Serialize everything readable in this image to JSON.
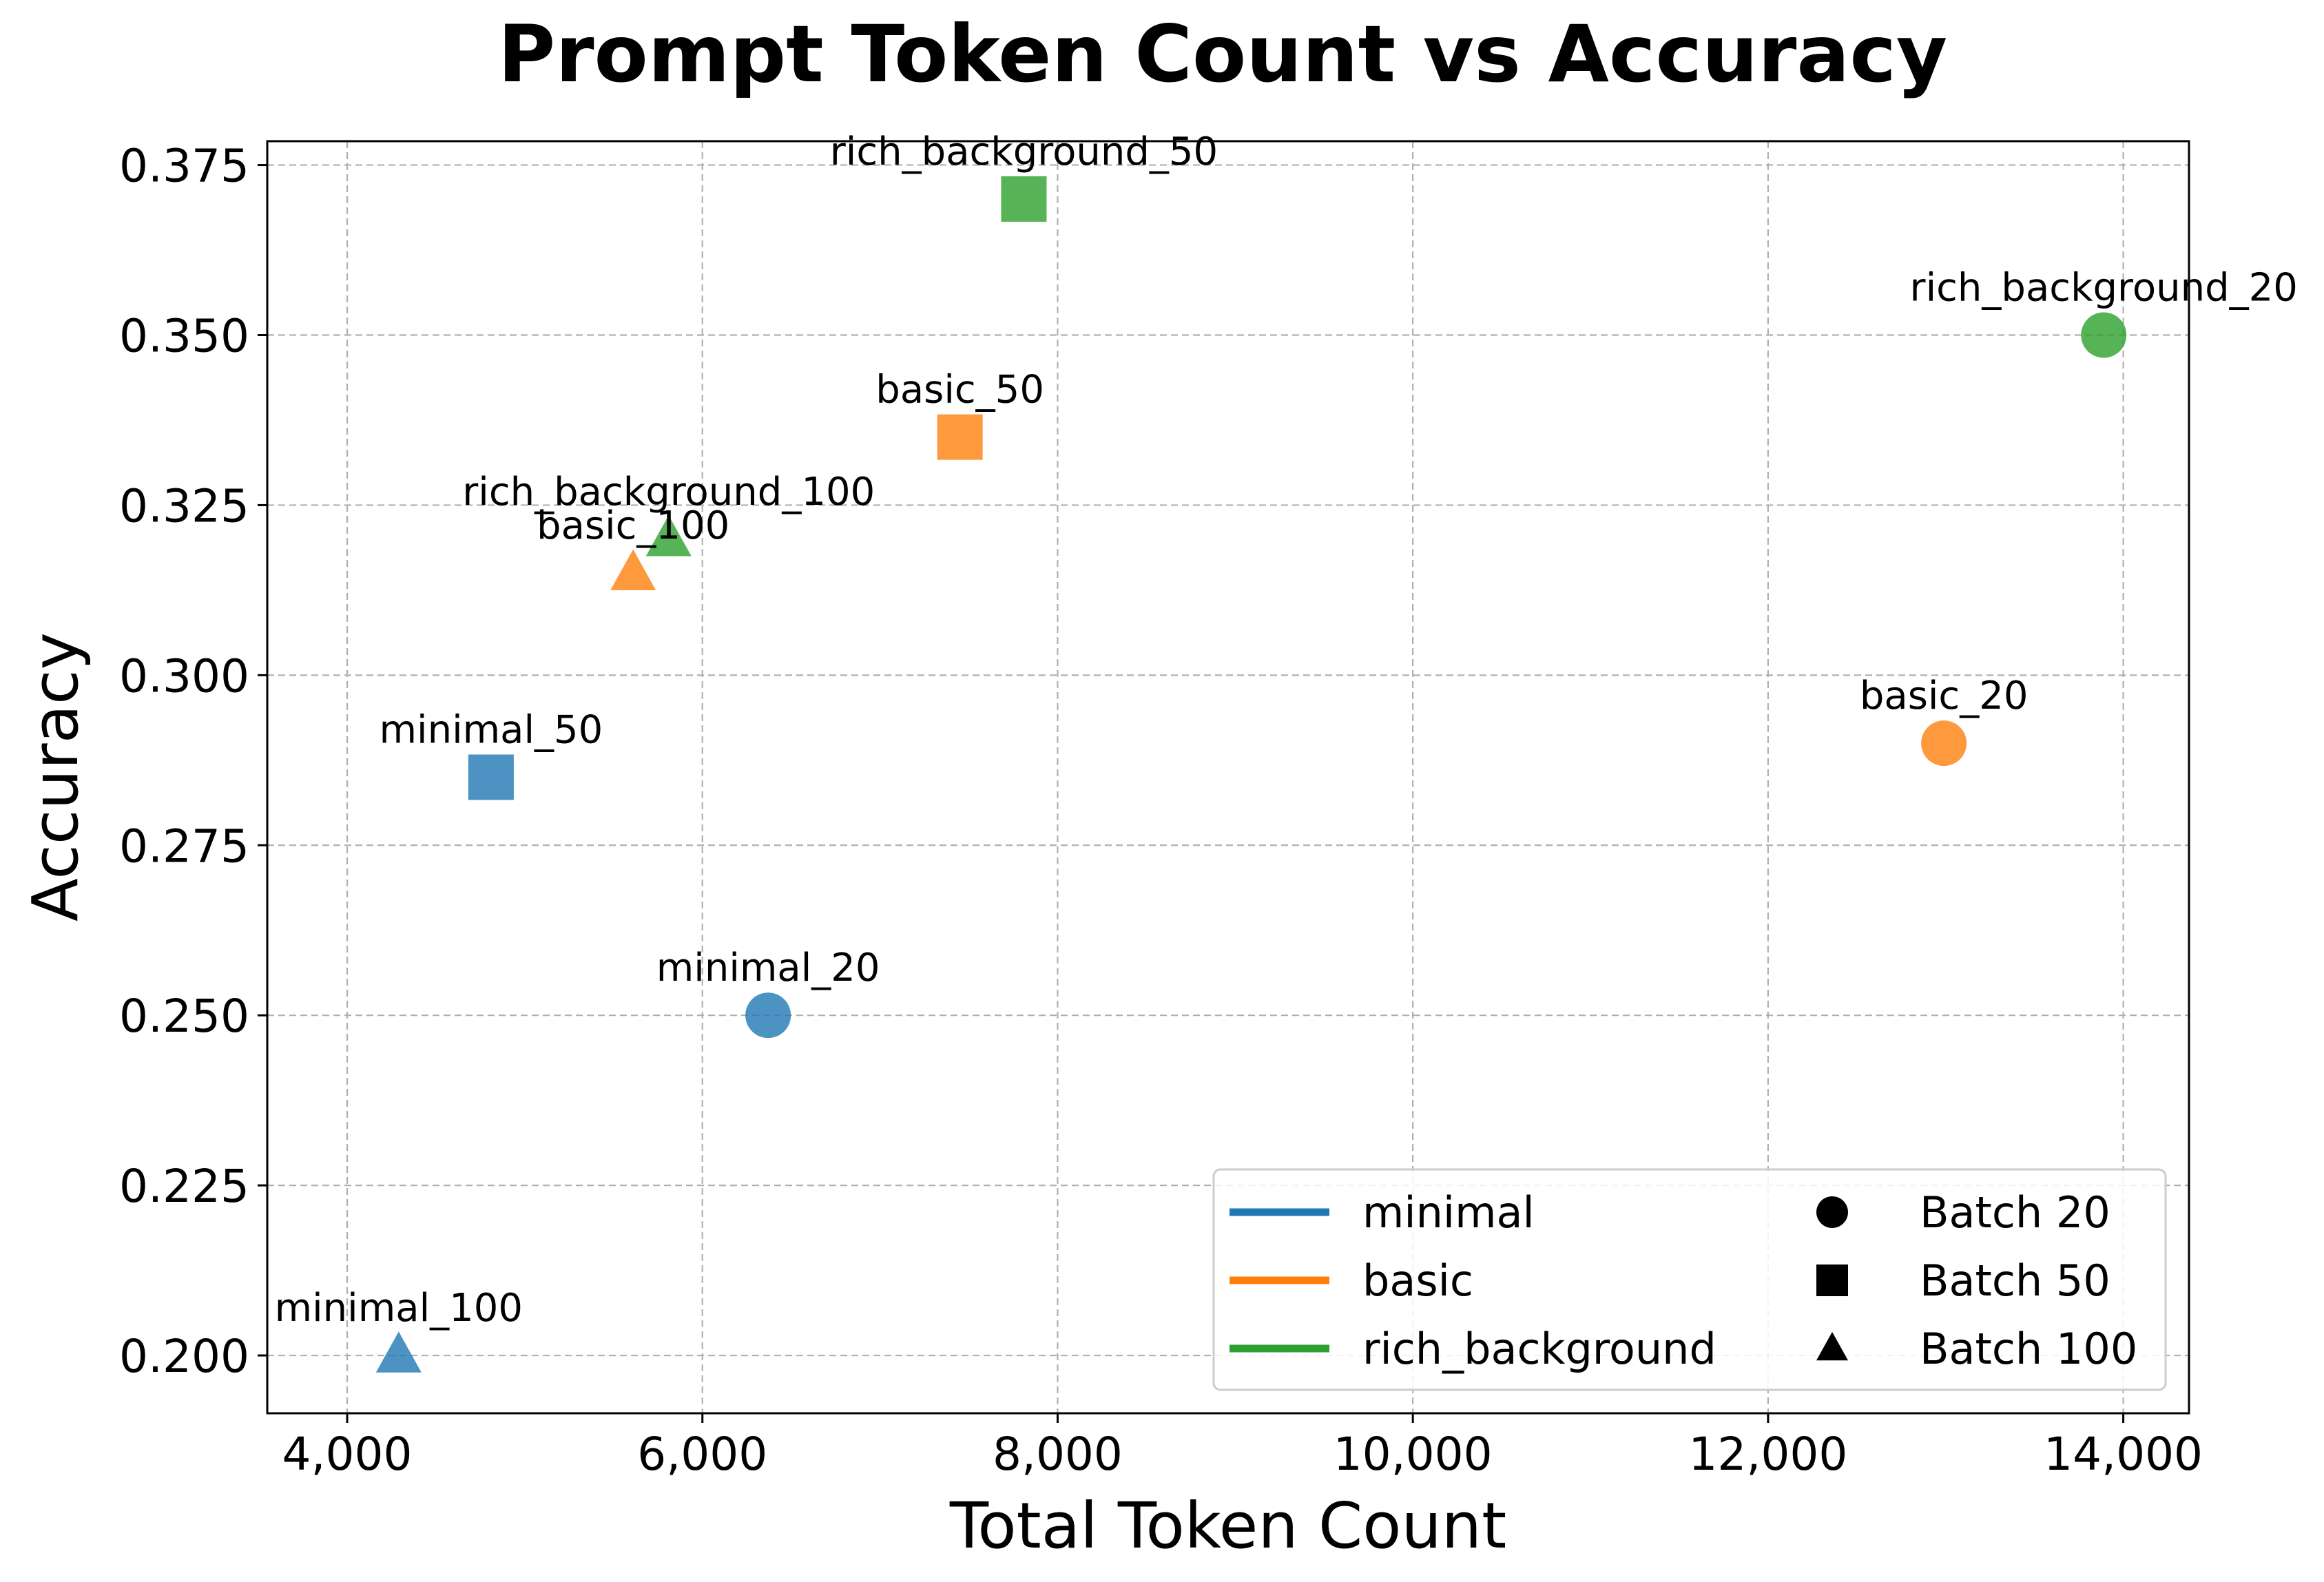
{
  "chart_data": {
    "type": "scatter",
    "title": "Prompt Token Count vs Accuracy",
    "xlabel": "Total Token Count",
    "ylabel": "Accuracy",
    "xlim": [
      3550,
      14370
    ],
    "ylim": [
      0.1915,
      0.3785
    ],
    "xticks": [
      4000,
      6000,
      8000,
      10000,
      12000,
      14000
    ],
    "xtick_labels": [
      "4,000",
      "6,000",
      "8,000",
      "10,000",
      "12,000",
      "14,000"
    ],
    "yticks": [
      0.2,
      0.225,
      0.25,
      0.275,
      0.3,
      0.325,
      0.35,
      0.375
    ],
    "ytick_labels": [
      "0.200",
      "0.225",
      "0.250",
      "0.275",
      "0.300",
      "0.325",
      "0.350",
      "0.375"
    ],
    "grid": true,
    "legend_position": "lower-right",
    "groups": [
      {
        "name": "minimal",
        "color": "#1f77b4"
      },
      {
        "name": "basic",
        "color": "#ff7f0e"
      },
      {
        "name": "rich_background",
        "color": "#2ca02c"
      }
    ],
    "batch_markers": [
      {
        "name": "Batch 20",
        "marker": "circle"
      },
      {
        "name": "Batch 50",
        "marker": "square"
      },
      {
        "name": "Batch 100",
        "marker": "triangle"
      }
    ],
    "points": [
      {
        "label": "minimal_20",
        "group": "minimal",
        "batch": "Batch 20",
        "x": 6370,
        "y": 0.25
      },
      {
        "label": "minimal_50",
        "group": "minimal",
        "batch": "Batch 50",
        "x": 4810,
        "y": 0.285
      },
      {
        "label": "minimal_100",
        "group": "minimal",
        "batch": "Batch 100",
        "x": 4290,
        "y": 0.2
      },
      {
        "label": "basic_20",
        "group": "basic",
        "batch": "Batch 20",
        "x": 12990,
        "y": 0.29
      },
      {
        "label": "basic_50",
        "group": "basic",
        "batch": "Batch 50",
        "x": 7450,
        "y": 0.335
      },
      {
        "label": "basic_100",
        "group": "basic",
        "batch": "Batch 100",
        "x": 5610,
        "y": 0.315
      },
      {
        "label": "rich_background_20",
        "group": "rich_background",
        "batch": "Batch 20",
        "x": 13890,
        "y": 0.35
      },
      {
        "label": "rich_background_50",
        "group": "rich_background",
        "batch": "Batch 50",
        "x": 7810,
        "y": 0.37
      },
      {
        "label": "rich_background_100",
        "group": "rich_background",
        "batch": "Batch 100",
        "x": 5810,
        "y": 0.32
      }
    ]
  }
}
